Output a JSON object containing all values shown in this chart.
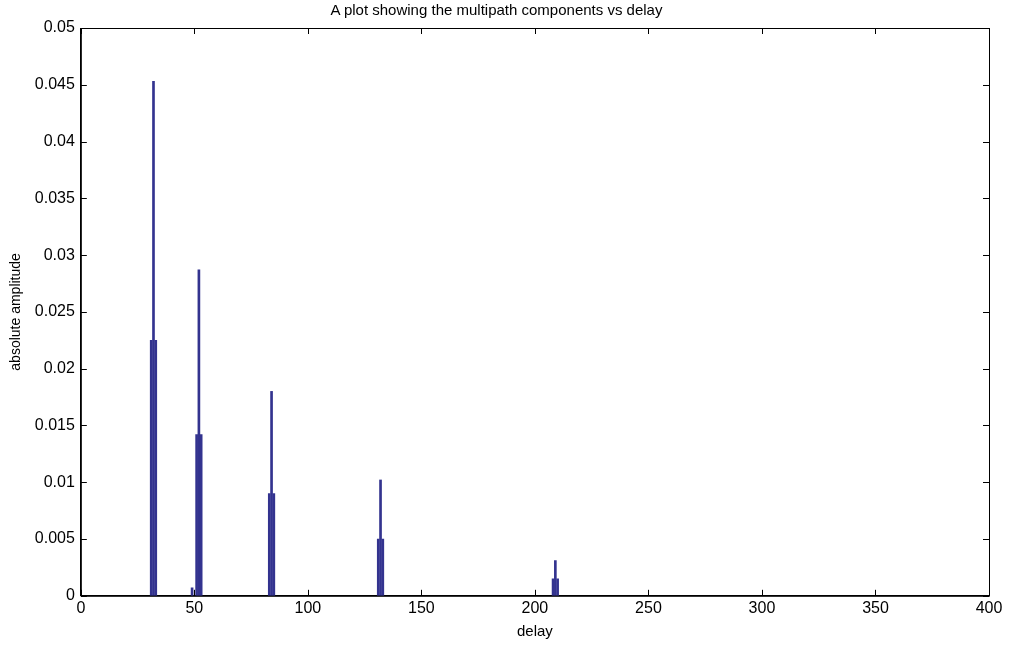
{
  "chart_data": {
    "type": "bar",
    "title": "A plot showing the multipath components vs delay",
    "xlabel": "delay",
    "ylabel": "absolute amplitude",
    "x": [
      31,
      32,
      33,
      49,
      51,
      52,
      53,
      83,
      84,
      85,
      131,
      132,
      133,
      208,
      209,
      210
    ],
    "values": [
      0.0225,
      0.0453,
      0.0225,
      0.0007,
      0.0142,
      0.0287,
      0.0142,
      0.009,
      0.018,
      0.009,
      0.005,
      0.0102,
      0.005,
      0.0015,
      0.0031,
      0.0015
    ],
    "color": "#33338f",
    "xlim": [
      0,
      400
    ],
    "xticks": [
      0,
      50,
      100,
      150,
      200,
      250,
      300,
      350,
      400
    ],
    "ylim": [
      0,
      0.05
    ],
    "yticks": [
      0,
      0.005,
      0.01,
      0.015,
      0.02,
      0.025,
      0.03,
      0.035,
      0.04,
      0.045,
      0.05
    ],
    "grid": false,
    "legend": false
  }
}
